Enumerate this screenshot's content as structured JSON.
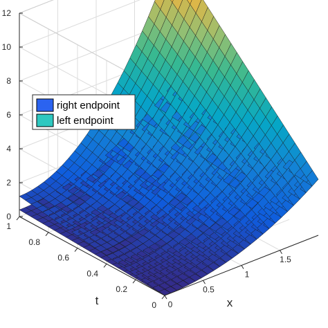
{
  "chart_data": {
    "type": "surface",
    "xlabel": "x",
    "ylabel": "t",
    "zlabel": "",
    "xlim": [
      0,
      2
    ],
    "ylim": [
      0,
      1
    ],
    "zlim": [
      0,
      12
    ],
    "x_ticks": [
      "0",
      "0.5",
      "1",
      "1.5"
    ],
    "y_ticks": [
      "0",
      "0.2",
      "0.4",
      "0.6",
      "0.8",
      "1"
    ],
    "z_ticks": [
      "0",
      "2",
      "4",
      "6",
      "8",
      "10",
      "12"
    ],
    "grid": true,
    "legend_position": "upper-left",
    "colormap": "parula",
    "mesh": {
      "x_cells": 25,
      "t_cells": 25
    },
    "series": [
      {
        "name": "right endpoint",
        "legend_color": "#2b63f0",
        "z_at_x0_t0": 0.0,
        "z_at_x0_t1": 1.2,
        "z_at_x2_t0": 3.3,
        "z_at_x2_t1": 12.0
      },
      {
        "name": "left endpoint",
        "legend_color": "#2ec8c0",
        "z_at_x0_t0": 0.0,
        "z_at_x0_t1": 0.4,
        "z_at_x2_t0": 3.3,
        "z_at_x2_t1": 4.3
      }
    ]
  }
}
